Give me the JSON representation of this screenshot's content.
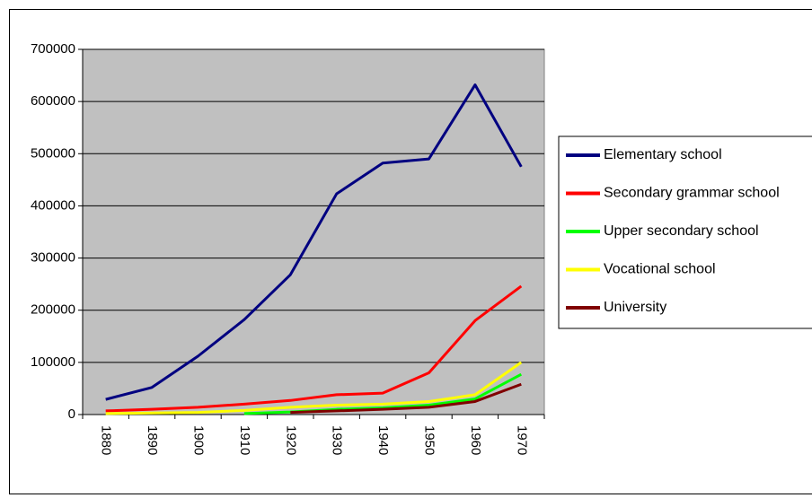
{
  "chart_data": {
    "type": "line",
    "categories": [
      "1880",
      "1890",
      "1900",
      "1910",
      "1920",
      "1930",
      "1940",
      "1950",
      "1960",
      "1970"
    ],
    "series": [
      {
        "name": "Elementary school",
        "color": "#000080",
        "values": [
          29000,
          52000,
          112000,
          182000,
          268000,
          423000,
          482000,
          490000,
          632000,
          475000
        ]
      },
      {
        "name": "Secondary grammar school",
        "color": "#ff0000",
        "values": [
          7000,
          10000,
          14000,
          20000,
          27000,
          38000,
          41000,
          80000,
          180000,
          246000
        ]
      },
      {
        "name": "Upper secondary school",
        "color": "#00ff00",
        "values": [
          null,
          null,
          null,
          2000,
          5000,
          10000,
          13000,
          18000,
          30000,
          77000
        ]
      },
      {
        "name": "Vocational school",
        "color": "#ffff00",
        "values": [
          2000,
          3000,
          4000,
          8000,
          14000,
          18000,
          20000,
          25000,
          38000,
          100000
        ]
      },
      {
        "name": "University",
        "color": "#800000",
        "values": [
          null,
          null,
          null,
          null,
          4000,
          7000,
          10000,
          14000,
          25000,
          58000
        ]
      }
    ],
    "ylim": [
      0,
      700000
    ],
    "yticks": [
      0,
      100000,
      200000,
      300000,
      400000,
      500000,
      600000,
      700000
    ],
    "grid": true,
    "legend": "right",
    "plot_background": "#c0c0c0"
  }
}
